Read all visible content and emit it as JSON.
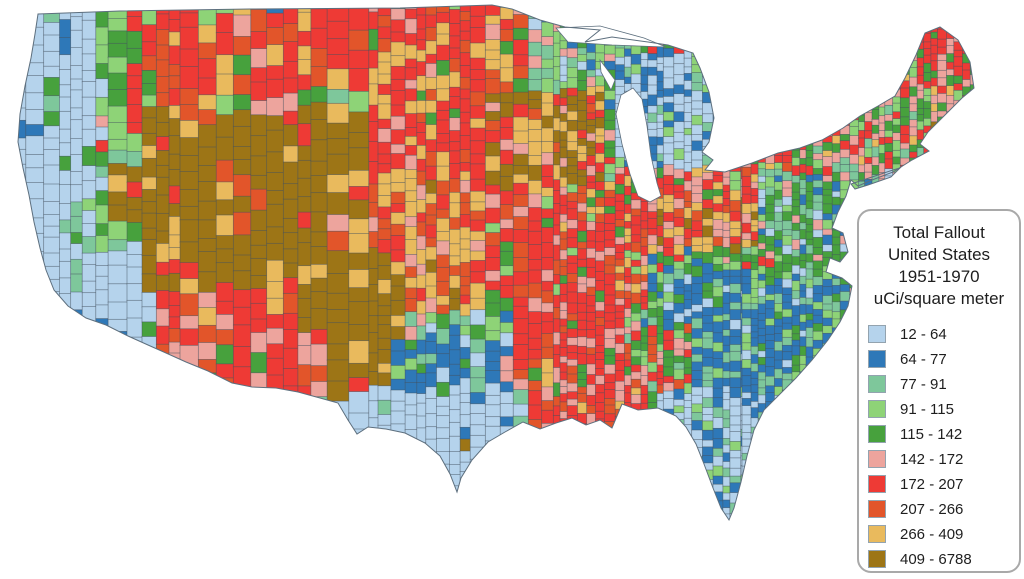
{
  "legend": {
    "title_lines": [
      "Total Fallout",
      "United States",
      "1951-1970",
      "uCi/square meter"
    ],
    "items": [
      {
        "label": "12 - 64",
        "color": "#b5d3ec"
      },
      {
        "label": "64 - 77",
        "color": "#2e78b8"
      },
      {
        "label": "77 - 91",
        "color": "#7ec79b"
      },
      {
        "label": "91 - 115",
        "color": "#8ed377"
      },
      {
        "label": "115 - 142",
        "color": "#47a13d"
      },
      {
        "label": "142 - 172",
        "color": "#eda49d"
      },
      {
        "label": "172 - 207",
        "color": "#ee3a35"
      },
      {
        "label": "207 - 266",
        "color": "#e2552a"
      },
      {
        "label": "266 - 409",
        "color": "#e9ba5d"
      },
      {
        "label": "409 - 6788",
        "color": "#9d7516"
      }
    ]
  },
  "map": {
    "seed": 1337,
    "colors": {
      "LB": "#b5d3ec",
      "B": "#2e78b8",
      "SG": "#7ec79b",
      "LG": "#8ed377",
      "G": "#47a13d",
      "SA": "#eda49d",
      "R": "#ee3a35",
      "O": "#e2552a",
      "T": "#e9ba5d",
      "BR": "#9d7516"
    },
    "county_border_color": "#44525f",
    "coast_color": "#5d6f7e",
    "water_color": "#ffffff",
    "palettes": {
      "westcoast": [
        [
          "LB",
          86
        ],
        [
          "B",
          6
        ],
        [
          "SG",
          4
        ],
        [
          "G",
          4
        ]
      ],
      "cascades": [
        [
          "LG",
          30
        ],
        [
          "G",
          24
        ],
        [
          "SG",
          18
        ],
        [
          "LB",
          12
        ],
        [
          "SA",
          8
        ],
        [
          "R",
          8
        ]
      ],
      "cvGreen": [
        [
          "LB",
          50
        ],
        [
          "LG",
          25
        ],
        [
          "G",
          15
        ],
        [
          "SG",
          10
        ]
      ],
      "nwRed": [
        [
          "R",
          44
        ],
        [
          "O",
          18
        ],
        [
          "T",
          14
        ],
        [
          "G",
          9
        ],
        [
          "SA",
          7
        ],
        [
          "LG",
          8
        ]
      ],
      "basinBrown": [
        [
          "BR",
          75
        ],
        [
          "T",
          15
        ],
        [
          "R",
          6
        ],
        [
          "O",
          4
        ]
      ],
      "mtRed": [
        [
          "R",
          46
        ],
        [
          "O",
          22
        ],
        [
          "T",
          20
        ],
        [
          "SA",
          6
        ],
        [
          "G",
          6
        ]
      ],
      "dakotaRedTan": [
        [
          "R",
          42
        ],
        [
          "T",
          30
        ],
        [
          "SA",
          12
        ],
        [
          "O",
          9
        ],
        [
          "LG",
          3
        ],
        [
          "G",
          4
        ]
      ],
      "plainsTan": [
        [
          "T",
          42
        ],
        [
          "R",
          24
        ],
        [
          "O",
          18
        ],
        [
          "SA",
          10
        ],
        [
          "BR",
          6
        ]
      ],
      "iowaBrown": [
        [
          "BR",
          46
        ],
        [
          "T",
          24
        ],
        [
          "R",
          18
        ],
        [
          "SA",
          8
        ],
        [
          "O",
          4
        ]
      ],
      "midwestRed": [
        [
          "R",
          44
        ],
        [
          "O",
          17
        ],
        [
          "SA",
          17
        ],
        [
          "T",
          9
        ],
        [
          "G",
          7
        ],
        [
          "LG",
          6
        ]
      ],
      "mnwiGreen": [
        [
          "LG",
          34
        ],
        [
          "SG",
          20
        ],
        [
          "G",
          18
        ],
        [
          "SA",
          14
        ],
        [
          "B",
          7
        ],
        [
          "LB",
          7
        ]
      ],
      "miLightBlue": [
        [
          "LB",
          60
        ],
        [
          "B",
          22
        ],
        [
          "SG",
          9
        ],
        [
          "LG",
          9
        ]
      ],
      "ohioMix": [
        [
          "R",
          30
        ],
        [
          "SA",
          22
        ],
        [
          "G",
          15
        ],
        [
          "LG",
          11
        ],
        [
          "T",
          12
        ],
        [
          "O",
          5
        ],
        [
          "BR",
          5
        ]
      ],
      "appalachiaTan": [
        [
          "T",
          32
        ],
        [
          "BR",
          22
        ],
        [
          "R",
          20
        ],
        [
          "SA",
          18
        ],
        [
          "O",
          8
        ]
      ],
      "kyTnGreen": [
        [
          "G",
          28
        ],
        [
          "LG",
          22
        ],
        [
          "R",
          16
        ],
        [
          "SA",
          14
        ],
        [
          "SG",
          12
        ],
        [
          "B",
          8
        ]
      ],
      "southMix": [
        [
          "G",
          25
        ],
        [
          "R",
          22
        ],
        [
          "SA",
          18
        ],
        [
          "LG",
          14
        ],
        [
          "O",
          11
        ],
        [
          "SG",
          10
        ]
      ],
      "laRed": [
        [
          "R",
          50
        ],
        [
          "SA",
          22
        ],
        [
          "O",
          13
        ],
        [
          "G",
          9
        ],
        [
          "T",
          6
        ]
      ],
      "seBlue": [
        [
          "B",
          46
        ],
        [
          "SG",
          19
        ],
        [
          "LG",
          14
        ],
        [
          "LB",
          9
        ],
        [
          "G",
          12
        ]
      ],
      "flLight": [
        [
          "LB",
          56
        ],
        [
          "B",
          19
        ],
        [
          "SG",
          12
        ],
        [
          "LG",
          13
        ]
      ],
      "midAtl": [
        [
          "G",
          25
        ],
        [
          "SG",
          18
        ],
        [
          "SA",
          19
        ],
        [
          "B",
          14
        ],
        [
          "LB",
          10
        ],
        [
          "LG",
          14
        ]
      ],
      "neMix": [
        [
          "SA",
          29
        ],
        [
          "G",
          22
        ],
        [
          "LG",
          17
        ],
        [
          "R",
          21
        ],
        [
          "SG",
          6
        ],
        [
          "T",
          3
        ],
        [
          "BR",
          2
        ]
      ],
      "txGreen": [
        [
          "SG",
          26
        ],
        [
          "G",
          22
        ],
        [
          "LG",
          20
        ],
        [
          "B",
          14
        ],
        [
          "SA",
          12
        ],
        [
          "LB",
          6
        ]
      ],
      "txBlue": [
        [
          "B",
          54
        ],
        [
          "LB",
          14
        ],
        [
          "SG",
          16
        ],
        [
          "G",
          10
        ],
        [
          "LG",
          6
        ]
      ],
      "sTxLight": [
        [
          "LB",
          87
        ],
        [
          "B",
          5
        ],
        [
          "SG",
          6
        ],
        [
          "G",
          2
        ]
      ],
      "swRed": [
        [
          "R",
          42
        ],
        [
          "SA",
          26
        ],
        [
          "O",
          20
        ],
        [
          "G",
          7
        ],
        [
          "T",
          5
        ]
      ],
      "brownDot": [
        [
          "BR",
          100
        ]
      ],
      "maineRed": [
        [
          "R",
          62
        ],
        [
          "G",
          26
        ],
        [
          "SA",
          12
        ]
      ]
    },
    "zones": [
      [
        "kyTnGreen",
        0,
        0,
        1024,
        579
      ],
      [
        "neMix",
        742,
        8,
        282,
        200
      ],
      [
        "ohioMix",
        618,
        140,
        175,
        132
      ],
      [
        "appalachiaTan",
        658,
        196,
        125,
        62
      ],
      [
        "midAtl",
        758,
        172,
        145,
        135
      ],
      [
        "kyTnGreen",
        558,
        250,
        232,
        100
      ],
      [
        "seBlue",
        638,
        268,
        215,
        155
      ],
      [
        "southMix",
        558,
        325,
        132,
        108
      ],
      [
        "laRed",
        518,
        375,
        130,
        65
      ],
      [
        "flLight",
        658,
        390,
        128,
        142
      ],
      [
        "mnwiGreen",
        478,
        2,
        168,
        96
      ],
      [
        "miLightBlue",
        618,
        50,
        106,
        118
      ],
      [
        "iowaBrown",
        468,
        88,
        135,
        104
      ],
      [
        "midwestRed",
        468,
        184,
        178,
        124
      ],
      [
        "txGreen",
        396,
        296,
        112,
        136
      ],
      [
        "laRed",
        508,
        296,
        118,
        94
      ],
      [
        "westcoast",
        0,
        0,
        168,
        579
      ],
      [
        "cascades",
        100,
        6,
        44,
        250
      ],
      [
        "cvGreen",
        78,
        150,
        34,
        56
      ],
      [
        "nwRed",
        132,
        6,
        138,
        124
      ],
      [
        "basinBrown",
        148,
        108,
        236,
        178
      ],
      [
        "basinBrown",
        104,
        160,
        46,
        62
      ],
      [
        "basinBrown",
        136,
        230,
        52,
        60
      ],
      [
        "mtRed",
        230,
        4,
        294,
        86
      ],
      [
        "dakotaRedTan",
        378,
        26,
        112,
        158
      ],
      [
        "plainsTan",
        336,
        166,
        144,
        144
      ],
      [
        "basinBrown",
        286,
        256,
        112,
        142
      ],
      [
        "swRed",
        156,
        284,
        136,
        106
      ],
      [
        "swRed",
        255,
        330,
        80,
        72
      ],
      [
        "txBlue",
        396,
        336,
        98,
        60
      ],
      [
        "sTxLight",
        336,
        392,
        188,
        104
      ],
      [
        "brownDot",
        456,
        434,
        16,
        14
      ],
      [
        "maineRed",
        916,
        24,
        62,
        66
      ]
    ],
    "bands": [
      [
        0,
        180,
        15
      ],
      [
        180,
        378,
        18
      ],
      [
        378,
        560,
        12
      ],
      [
        560,
        742,
        8.6
      ],
      [
        742,
        980,
        8
      ]
    ],
    "outline_paths": [
      "M38,14 L120,11 250,9 400,8 492,5 512,9 540,20 565,27 600,30 585,42 612,37 648,42 668,45 693,53 700,68 709,92 714,118 709,142 702,152 713,160 705,170 725,172 752,163 778,153 800,148 822,140 843,128 860,116 878,106 895,96 905,78 916,55 925,33 940,27 958,40 970,62 974,88 962,98 950,110 940,120 928,132 920,144 929,151 912,160 893,172 872,180 858,186 851,180 846,196 838,212 832,228 843,233 848,252 840,262 830,258 826,272 842,278 852,286 848,306 840,322 828,340 812,360 796,378 780,394 764,410 754,430 747,456 741,482 734,508 729,520 721,508 713,488 704,464 696,444 686,427 676,416 658,408 638,410 622,404 612,428 600,420 586,425 572,418 556,423 540,429 523,422 505,432 488,442 472,460 461,478 457,492 450,474 440,456 425,443 405,433 386,429 368,427 357,434 348,420 338,403 320,398 298,392 276,388 252,387 232,383 208,371 186,362 166,353 148,345 128,336 106,325 86,318 68,306 54,290 46,270 40,248 34,222 29,195 23,168 18,142 20,114 25,86 31,58 35,34 Z",
      "M851,184 L872,177 893,170 900,168 891,177 868,185 855,189 Z"
    ],
    "lake_paths": [
      "M621,95 L633,88 642,99 647,126 651,156 657,183 661,196 650,202 638,196 630,174 622,144 616,114 Z",
      "M556,28 L600,26 644,38 666,47 612,45 568,42 Z",
      "M600,60 L615,80 611,90 601,72 Z"
    ]
  }
}
